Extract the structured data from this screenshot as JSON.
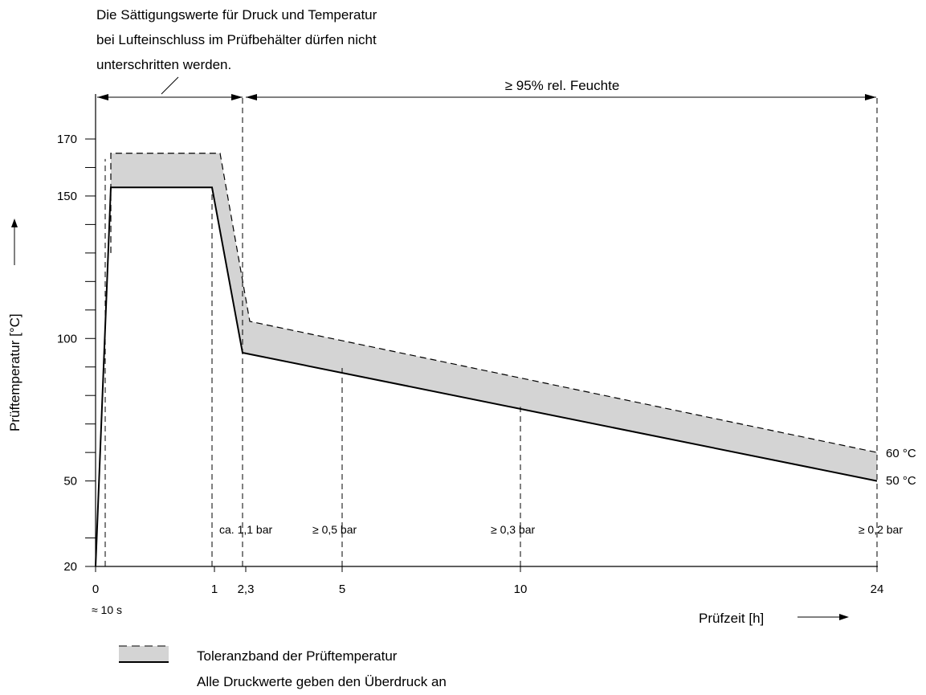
{
  "chart_data": {
    "type": "area",
    "ylabel": "Prüftemperatur [°C]",
    "xlabel": "Prüfzeit [h]",
    "y_ticks": [
      20,
      50,
      100,
      150,
      170
    ],
    "y_minor_ticks": [
      30,
      60,
      70,
      80,
      90,
      110,
      120,
      130,
      140,
      160
    ],
    "ylim": [
      20,
      180
    ],
    "xlim": [
      0,
      24
    ],
    "x_tick_labels": [
      {
        "x": 0,
        "label": "0"
      },
      {
        "x": 1,
        "label": "1"
      },
      {
        "x": 2.3,
        "label": "2,3"
      },
      {
        "x": 5,
        "label": "5"
      },
      {
        "x": 10,
        "label": "10"
      },
      {
        "x": 24,
        "label": "24"
      }
    ],
    "x_note": "≈ 10 s",
    "x_note_at": 0.25,
    "series": [
      {
        "kind": "upper_dashed",
        "x": [
          0.45,
          0.45,
          3.5,
          4.4,
          24
        ],
        "y": [
          130,
          165,
          165,
          106,
          60
        ]
      },
      {
        "kind": "lower_solid",
        "x": [
          0,
          0.45,
          3.3,
          4.2,
          24
        ],
        "y": [
          20,
          153,
          153,
          95,
          50
        ]
      }
    ],
    "series_end_labels": [
      "60 °C",
      "50 °C"
    ],
    "vertical_markers": [
      {
        "x": 0.25,
        "from": 20,
        "to": 163
      },
      {
        "x": 3.3,
        "from": 20,
        "to": 153
      },
      {
        "x": 4.2,
        "from": 20,
        "to": 185
      },
      {
        "x": 7,
        "from": 20,
        "to": 90
      },
      {
        "x": 12,
        "from": 20,
        "to": 76
      },
      {
        "x": 22,
        "from": 20,
        "to": 185
      }
    ],
    "pressure_labels": [
      {
        "x": 3.3,
        "text": "ca. 1,1 bar"
      },
      {
        "x": 7,
        "text": "≥ 0,5 bar"
      },
      {
        "x": 12,
        "text": "≥ 0,3 bar"
      },
      {
        "x": 22,
        "text": "≥ 0,2 bar"
      }
    ],
    "top_annotation": {
      "text": [
        "Die Sättigungswerte für Druck und Temperatur",
        "bei Lufteinschluss im Prüfbehälter dürfen nicht",
        "unterschritten werden."
      ]
    },
    "humidity_label": "≥ 95% rel. Feuchte",
    "legend": {
      "band_label": "Toleranzband der Prüftemperatur",
      "note": "Alle Druckwerte geben den Überdruck an"
    }
  }
}
